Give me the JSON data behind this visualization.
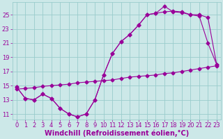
{
  "background_color": "#cce8e8",
  "line_color": "#990099",
  "grid_color": "#99cccc",
  "xlabel": "Windchill (Refroidissement éolien,°C)",
  "xlabel_fontsize": 7,
  "tick_fontsize": 6,
  "ylabel_ticks": [
    11,
    13,
    15,
    17,
    19,
    21,
    23,
    25
  ],
  "xlim": [
    -0.5,
    23.5
  ],
  "ylim": [
    10.2,
    26.8
  ],
  "curve1_x": [
    0,
    1,
    2,
    3,
    4,
    5,
    6,
    7,
    8,
    9,
    10,
    11,
    12,
    13,
    14,
    15,
    16,
    17,
    18,
    19,
    20,
    21,
    22,
    23
  ],
  "curve1_y": [
    14.8,
    13.2,
    13.0,
    13.8,
    13.2,
    11.8,
    11.0,
    10.6,
    11.0,
    13.0,
    16.5,
    19.5,
    21.2,
    22.2,
    23.5,
    25.0,
    25.2,
    26.2,
    25.4,
    25.3,
    25.0,
    25.0,
    24.6,
    18.0
  ],
  "curve2_x": [
    0,
    1,
    2,
    3,
    4,
    5,
    6,
    7,
    8,
    9,
    10,
    11,
    12,
    13,
    14,
    15,
    16,
    17,
    18,
    19,
    20,
    21,
    22,
    23
  ],
  "curve2_y": [
    14.8,
    13.2,
    13.0,
    13.8,
    13.2,
    11.8,
    11.0,
    10.6,
    11.0,
    13.0,
    16.5,
    19.5,
    21.2,
    22.2,
    23.5,
    25.0,
    25.2,
    25.4,
    25.5,
    25.4,
    25.0,
    24.8,
    21.0,
    18.0
  ],
  "line3_x": [
    0,
    1,
    2,
    3,
    4,
    5,
    6,
    7,
    8,
    9,
    10,
    11,
    12,
    13,
    14,
    15,
    16,
    17,
    18,
    19,
    20,
    21,
    22,
    23
  ],
  "line3_y": [
    14.5,
    14.6,
    14.7,
    14.9,
    15.0,
    15.1,
    15.2,
    15.4,
    15.5,
    15.6,
    15.7,
    15.8,
    16.0,
    16.2,
    16.3,
    16.4,
    16.5,
    16.7,
    16.8,
    17.0,
    17.2,
    17.4,
    17.6,
    17.8
  ]
}
